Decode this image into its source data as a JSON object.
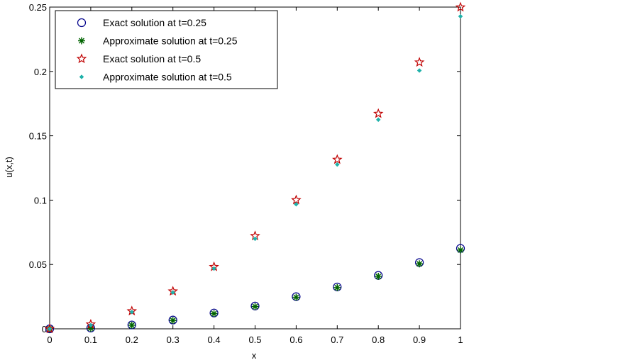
{
  "chart_data": {
    "type": "scatter",
    "title": "",
    "xlabel": "x",
    "ylabel": "u(x,t)",
    "xlim": [
      0,
      1
    ],
    "ylim": [
      0,
      0.25
    ],
    "x_ticks": [
      "0",
      "0.1",
      "0.2",
      "0.3",
      "0.4",
      "0.5",
      "0.6",
      "0.7",
      "0.8",
      "0.9",
      "1"
    ],
    "y_ticks": [
      "0",
      "0.05",
      "0.1",
      "0.15",
      "0.2",
      "0.25"
    ],
    "grid": false,
    "legend_position": "top-left",
    "x": [
      0,
      0.1,
      0.2,
      0.3,
      0.4,
      0.5,
      0.6,
      0.7,
      0.8,
      0.9,
      1.0
    ],
    "series": [
      {
        "name": "Exact solution at t=0.25",
        "marker": "circle",
        "color": "#00008B",
        "values": [
          0,
          0.0006,
          0.003,
          0.0068,
          0.0123,
          0.0177,
          0.025,
          0.0325,
          0.0415,
          0.0515,
          0.0625
        ]
      },
      {
        "name": "Approximate solution at t=0.25",
        "marker": "asterisk",
        "color": "#006400",
        "values": [
          0,
          0.0004,
          0.0028,
          0.0065,
          0.0118,
          0.0173,
          0.0245,
          0.032,
          0.0408,
          0.0505,
          0.0612
        ]
      },
      {
        "name": "Exact solution at t=0.5",
        "marker": "pentagram",
        "color": "#C00000",
        "values": [
          0,
          0.0035,
          0.0138,
          0.0292,
          0.0482,
          0.0722,
          0.1001,
          0.1315,
          0.1672,
          0.2071,
          0.2499
        ]
      },
      {
        "name": "Approximate solution at t=0.5",
        "marker": "dot",
        "color": "#20B2AA",
        "values": [
          0,
          0.0028,
          0.013,
          0.0282,
          0.0468,
          0.07,
          0.0968,
          0.1277,
          0.1625,
          0.2007,
          0.2428
        ]
      }
    ]
  }
}
